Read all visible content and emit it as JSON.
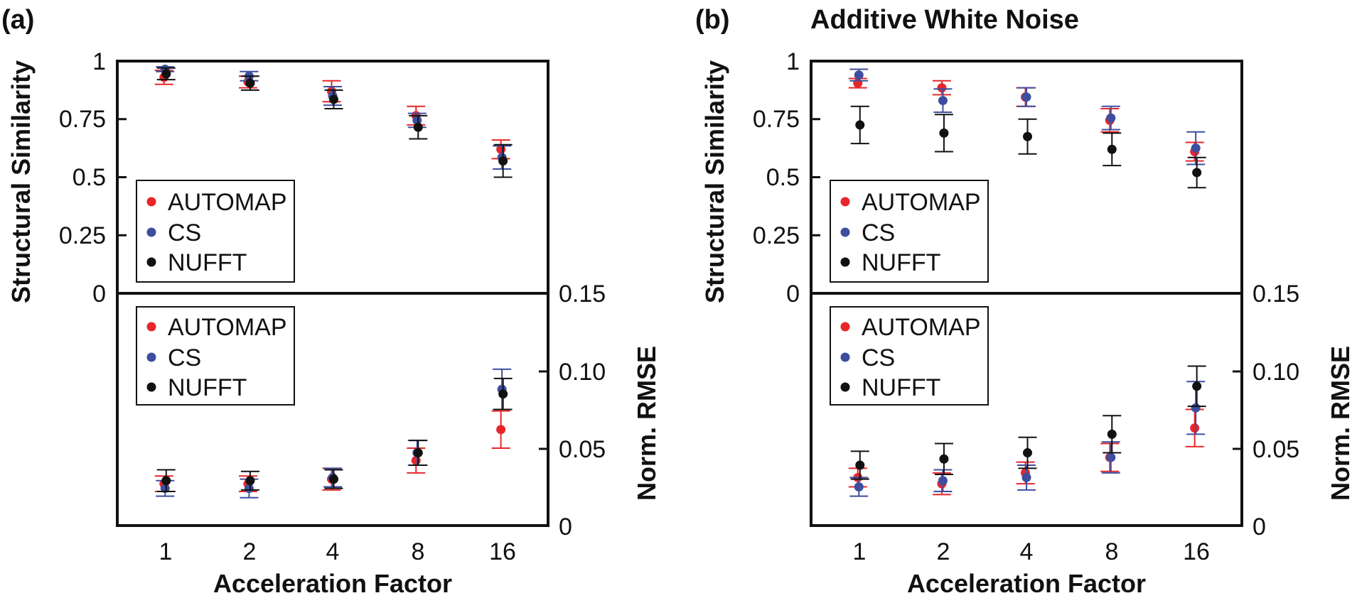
{
  "colors": {
    "AUTOMAP": "#e8262a",
    "CS": "#3d4e9e",
    "NUFFT": "#111111"
  },
  "chart_data": [
    {
      "id": "a",
      "type": "scatter",
      "panel_label": "(a)",
      "title": "",
      "xlabel": "Acceleration Factor",
      "categories": [
        "1",
        "2",
        "4",
        "8",
        "16"
      ],
      "top": {
        "ylabel": "Structural Similarity",
        "ylim": [
          0,
          1
        ],
        "yticks": [
          "0",
          "0.25",
          "0.5",
          "0.75",
          "1"
        ],
        "legend": [
          "AUTOMAP",
          "CS",
          "NUFFT"
        ],
        "legend_position": "bottom-left",
        "series": [
          {
            "name": "AUTOMAP",
            "values": [
              0.93,
              0.91,
              0.87,
              0.765,
              0.62
            ],
            "errors": [
              0.03,
              0.025,
              0.045,
              0.04,
              0.04
            ]
          },
          {
            "name": "CS",
            "values": [
              0.965,
              0.935,
              0.85,
              0.745,
              0.585
            ],
            "errors": [
              0.01,
              0.02,
              0.04,
              0.03,
              0.05
            ]
          },
          {
            "name": "NUFFT",
            "values": [
              0.945,
              0.905,
              0.835,
              0.715,
              0.57
            ],
            "errors": [
              0.025,
              0.03,
              0.04,
              0.05,
              0.07
            ]
          }
        ]
      },
      "bottom": {
        "ylabel": "Norm. RMSE",
        "ylim": [
          0,
          0.15
        ],
        "yticks": [
          "0",
          "0.05",
          "0.10",
          "0.15"
        ],
        "legend": [
          "AUTOMAP",
          "CS",
          "NUFFT"
        ],
        "legend_position": "top-left",
        "series": [
          {
            "name": "AUTOMAP",
            "values": [
              0.027,
              0.027,
              0.03,
              0.042,
              0.062
            ],
            "errors": [
              0.005,
              0.005,
              0.007,
              0.008,
              0.012
            ]
          },
          {
            "name": "CS",
            "values": [
              0.024,
              0.024,
              0.031,
              0.047,
              0.088
            ],
            "errors": [
              0.005,
              0.006,
              0.006,
              0.008,
              0.013
            ]
          },
          {
            "name": "NUFFT",
            "values": [
              0.029,
              0.029,
              0.03,
              0.047,
              0.085
            ],
            "errors": [
              0.007,
              0.006,
              0.006,
              0.008,
              0.01
            ]
          }
        ]
      }
    },
    {
      "id": "b",
      "type": "scatter",
      "panel_label": "(b)",
      "title": "Additive White Noise",
      "xlabel": "Acceleration Factor",
      "categories": [
        "1",
        "2",
        "4",
        "8",
        "16"
      ],
      "top": {
        "ylabel": "Structural Similarity",
        "ylim": [
          0,
          1
        ],
        "yticks": [
          "0",
          "0.25",
          "0.5",
          "0.75",
          "1"
        ],
        "legend": [
          "AUTOMAP",
          "CS",
          "NUFFT"
        ],
        "legend_position": "bottom-left",
        "series": [
          {
            "name": "AUTOMAP",
            "values": [
              0.905,
              0.885,
              0.845,
              0.745,
              0.61
            ],
            "errors": [
              0.02,
              0.03,
              0.04,
              0.05,
              0.04
            ]
          },
          {
            "name": "CS",
            "values": [
              0.94,
              0.83,
              0.845,
              0.755,
              0.625
            ],
            "errors": [
              0.025,
              0.05,
              0.04,
              0.05,
              0.07
            ]
          },
          {
            "name": "NUFFT",
            "values": [
              0.725,
              0.69,
              0.675,
              0.62,
              0.52
            ],
            "errors": [
              0.08,
              0.08,
              0.075,
              0.07,
              0.065
            ]
          }
        ]
      },
      "bottom": {
        "ylabel": "Norm. RMSE",
        "ylim": [
          0,
          0.15
        ],
        "yticks": [
          "0",
          "0.05",
          "0.10",
          "0.15"
        ],
        "legend": [
          "AUTOMAP",
          "CS",
          "NUFFT"
        ],
        "legend_position": "top-left",
        "series": [
          {
            "name": "AUTOMAP",
            "values": [
              0.031,
              0.027,
              0.034,
              0.044,
              0.063
            ],
            "errors": [
              0.006,
              0.007,
              0.007,
              0.009,
              0.012
            ]
          },
          {
            "name": "CS",
            "values": [
              0.025,
              0.029,
              0.031,
              0.044,
              0.076
            ],
            "errors": [
              0.006,
              0.007,
              0.008,
              0.01,
              0.017
            ]
          },
          {
            "name": "NUFFT",
            "values": [
              0.039,
              0.043,
              0.047,
              0.059,
              0.09
            ],
            "errors": [
              0.009,
              0.01,
              0.01,
              0.012,
              0.013
            ]
          }
        ]
      }
    }
  ]
}
